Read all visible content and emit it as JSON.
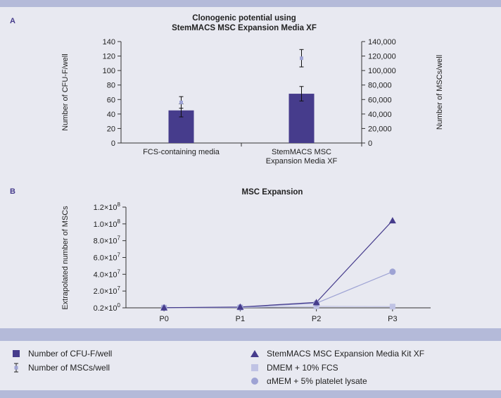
{
  "panel_a": {
    "letter": "A",
    "title_line1": "Clonogenic potential using",
    "title_line2": "StemMACS MSC Expansion Media XF",
    "ylabel_left": "Number of CFU-F/well",
    "ylabel_right": "Number of MSCs/well"
  },
  "panel_b": {
    "letter": "B",
    "title": "MSC Expansion",
    "ylabel": "Extrapolated number of MSCs"
  },
  "legend": {
    "items": [
      {
        "label": "Number of CFU-F/well"
      },
      {
        "label": "Number of MSCs/well"
      },
      {
        "label": "StemMACS MSC Expansion Media Kit XF"
      },
      {
        "label": "DMEM + 10% FCS"
      },
      {
        "label": "αMEM + 5% platelet lysate"
      }
    ]
  },
  "colors": {
    "bar": "#463c8c",
    "msc_marker": "#9ea3d4",
    "stemmacs": "#463c8c",
    "dmem": "#c0c3e4",
    "amem": "#9ea3d4",
    "axis": "#333333",
    "panel_bg": "#e8e9f1",
    "band": "#b4bad9"
  },
  "chart_data": [
    {
      "type": "bar",
      "categories": [
        "FCS-containing media",
        "StemMACS MSC Expansion Media XF"
      ],
      "category_lines": [
        [
          "FCS-containing media"
        ],
        [
          "StemMACS MSC",
          "Expansion Media XF"
        ]
      ],
      "series": [
        {
          "name": "Number of CFU-F/well",
          "axis": "left",
          "values": [
            45,
            68
          ],
          "error": [
            9,
            10
          ]
        },
        {
          "name": "Number of MSCs/well",
          "axis": "right",
          "values": [
            56000,
            117000
          ],
          "error": [
            8000,
            12000
          ]
        }
      ],
      "ylim_left": [
        0,
        140
      ],
      "yticks_left": [
        "0",
        "20",
        "40",
        "60",
        "80",
        "100",
        "120",
        "140"
      ],
      "ylim_right": [
        0,
        140000
      ],
      "yticks_right": [
        "0",
        "20,000",
        "40,000",
        "60,000",
        "80,000",
        "100,000",
        "120,000",
        "140,000"
      ]
    },
    {
      "type": "line",
      "categories": [
        "P0",
        "P1",
        "P2",
        "P3"
      ],
      "series": [
        {
          "name": "StemMACS MSC Expansion Media Kit XF",
          "marker": "triangle",
          "values": [
            0.2,
            1.0,
            6.5,
            104.0
          ]
        },
        {
          "name": "DMEM + 10% FCS",
          "marker": "square",
          "values": [
            0.2,
            0.4,
            1.8,
            1.5
          ]
        },
        {
          "name": "αMEM + 5% platelet lysate",
          "marker": "circle",
          "values": [
            0.2,
            0.6,
            5.5,
            43.0
          ]
        }
      ],
      "unit_note": "values in units of 10^6 cells",
      "ylim": [
        0,
        120
      ],
      "yticks": [
        {
          "mant": "0.2",
          "exp": "0"
        },
        {
          "mant": "2.0",
          "exp": "7"
        },
        {
          "mant": "4.0",
          "exp": "7"
        },
        {
          "mant": "6.0",
          "exp": "7"
        },
        {
          "mant": "8.0",
          "exp": "7"
        },
        {
          "mant": "1.0",
          "exp": "8"
        },
        {
          "mant": "1.2",
          "exp": "8"
        }
      ]
    }
  ]
}
